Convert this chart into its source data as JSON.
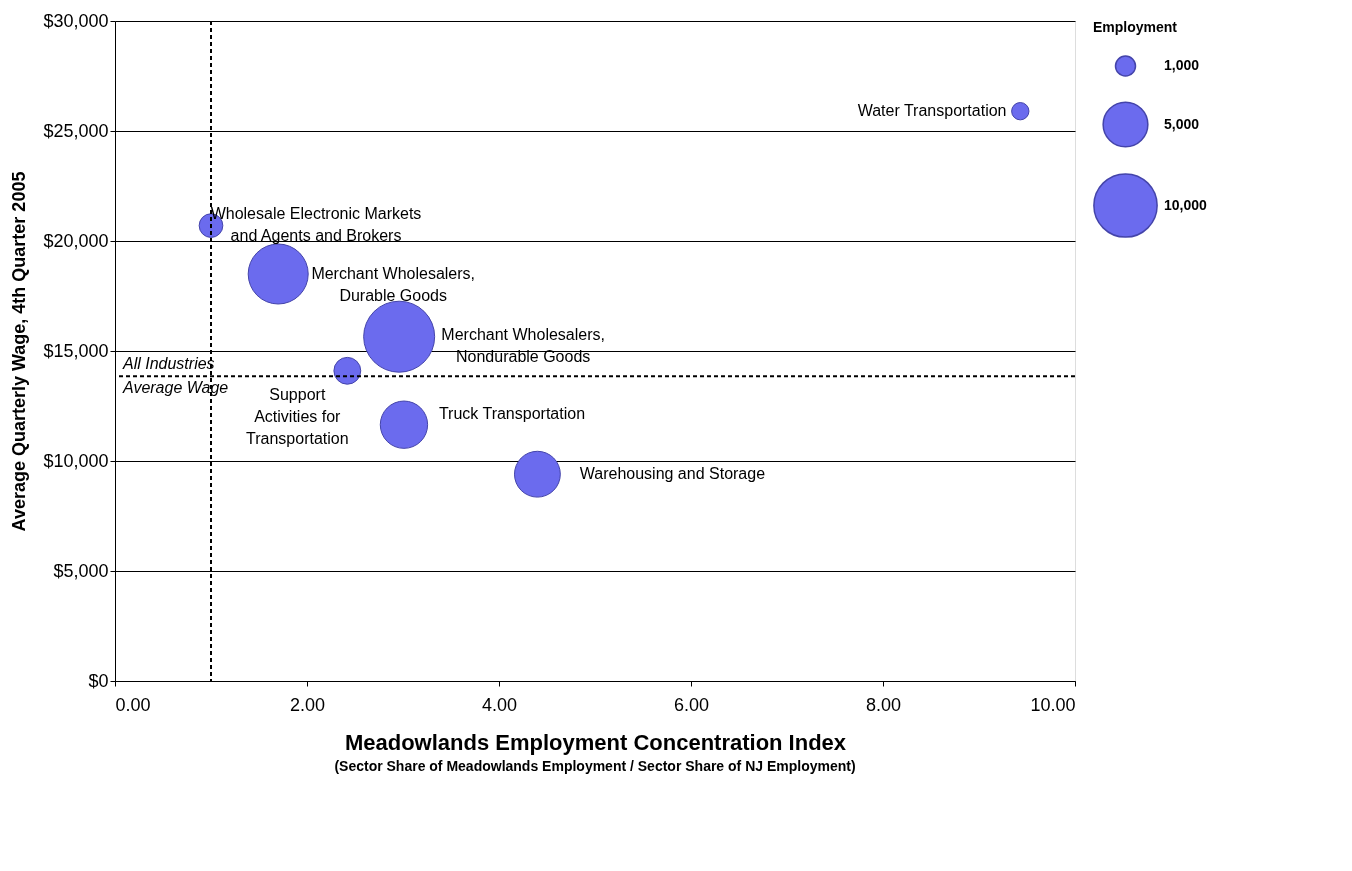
{
  "chart_data": {
    "type": "bubble",
    "xlabel": "Meadowlands Employment Concentration Index",
    "ylabel": "Average Quarterly Wage, 4th Quarter 2005",
    "legend_title": "Employment",
    "series": [
      {
        "name": "Water Transportation",
        "color": "#6b6bee",
        "x": [
          9.43
        ],
        "values": [
          25900
        ],
        "sizes": [
          750
        ]
      },
      {
        "name": "Wholesale Electronic Markets\nand Agents and Brokers",
        "color": "#6b6bee",
        "x": [
          1.0
        ],
        "values": [
          20700
        ],
        "sizes": [
          1400
        ]
      },
      {
        "name": "Merchant Wholesalers,\nDurable Goods",
        "color": "#6b6bee",
        "x": [
          1.7
        ],
        "values": [
          18500
        ],
        "sizes": [
          9000
        ]
      },
      {
        "name": "Merchant Wholesalers,\nNondurable Goods",
        "color": "#6b6bee",
        "x": [
          2.96
        ],
        "values": [
          15650
        ],
        "sizes": [
          12600
        ]
      },
      {
        "name": "Support\nActivities for\nTransportation",
        "color": "#6b6bee",
        "x": [
          2.42
        ],
        "values": [
          14100
        ],
        "sizes": [
          1800
        ]
      },
      {
        "name": "Truck Transportation",
        "color": "#6b6bee",
        "x": [
          3.01
        ],
        "values": [
          11650
        ],
        "sizes": [
          5600
        ]
      },
      {
        "name": "Warehousing and Storage",
        "color": "#6b6bee",
        "x": [
          4.4
        ],
        "values": [
          9400
        ],
        "sizes": [
          5250
        ]
      }
    ],
    "size_legend": [
      {
        "value": 1000,
        "label": "1,000"
      },
      {
        "value": 5000,
        "label": "5,000"
      },
      {
        "value": 10000,
        "label": "10,000"
      }
    ],
    "xlim": [
      0,
      10
    ],
    "xticks": [
      {
        "value": 0,
        "label": "0.00"
      },
      {
        "value": 2,
        "label": "2.00"
      },
      {
        "value": 4,
        "label": "4.00"
      },
      {
        "value": 6,
        "label": "6.00"
      },
      {
        "value": 8,
        "label": "8.00"
      },
      {
        "value": 10,
        "label": "10.00"
      }
    ],
    "ylim": [
      0,
      30000
    ],
    "yticks": [
      {
        "value": 0,
        "label": "$0"
      },
      {
        "value": 5000,
        "label": "$5,000"
      },
      {
        "value": 10000,
        "label": "$10,000"
      },
      {
        "value": 15000,
        "label": "$15,000"
      },
      {
        "value": 20000,
        "label": "$20,000"
      },
      {
        "value": 25000,
        "label": "$25,000"
      },
      {
        "value": 30000,
        "label": "$30,000"
      }
    ],
    "grid": "y",
    "legend": "right",
    "ref_lines": [
      {
        "axis": "x",
        "value": 1.0,
        "line_style": "dashed"
      },
      {
        "axis": "y",
        "value": 13850,
        "label": "All Industries\nAverage Wage",
        "line_style": "dashed"
      }
    ],
    "annotations": [
      "(Sector Share of Meadowlands Employment / Sector Share of NJ Employment)"
    ]
  }
}
